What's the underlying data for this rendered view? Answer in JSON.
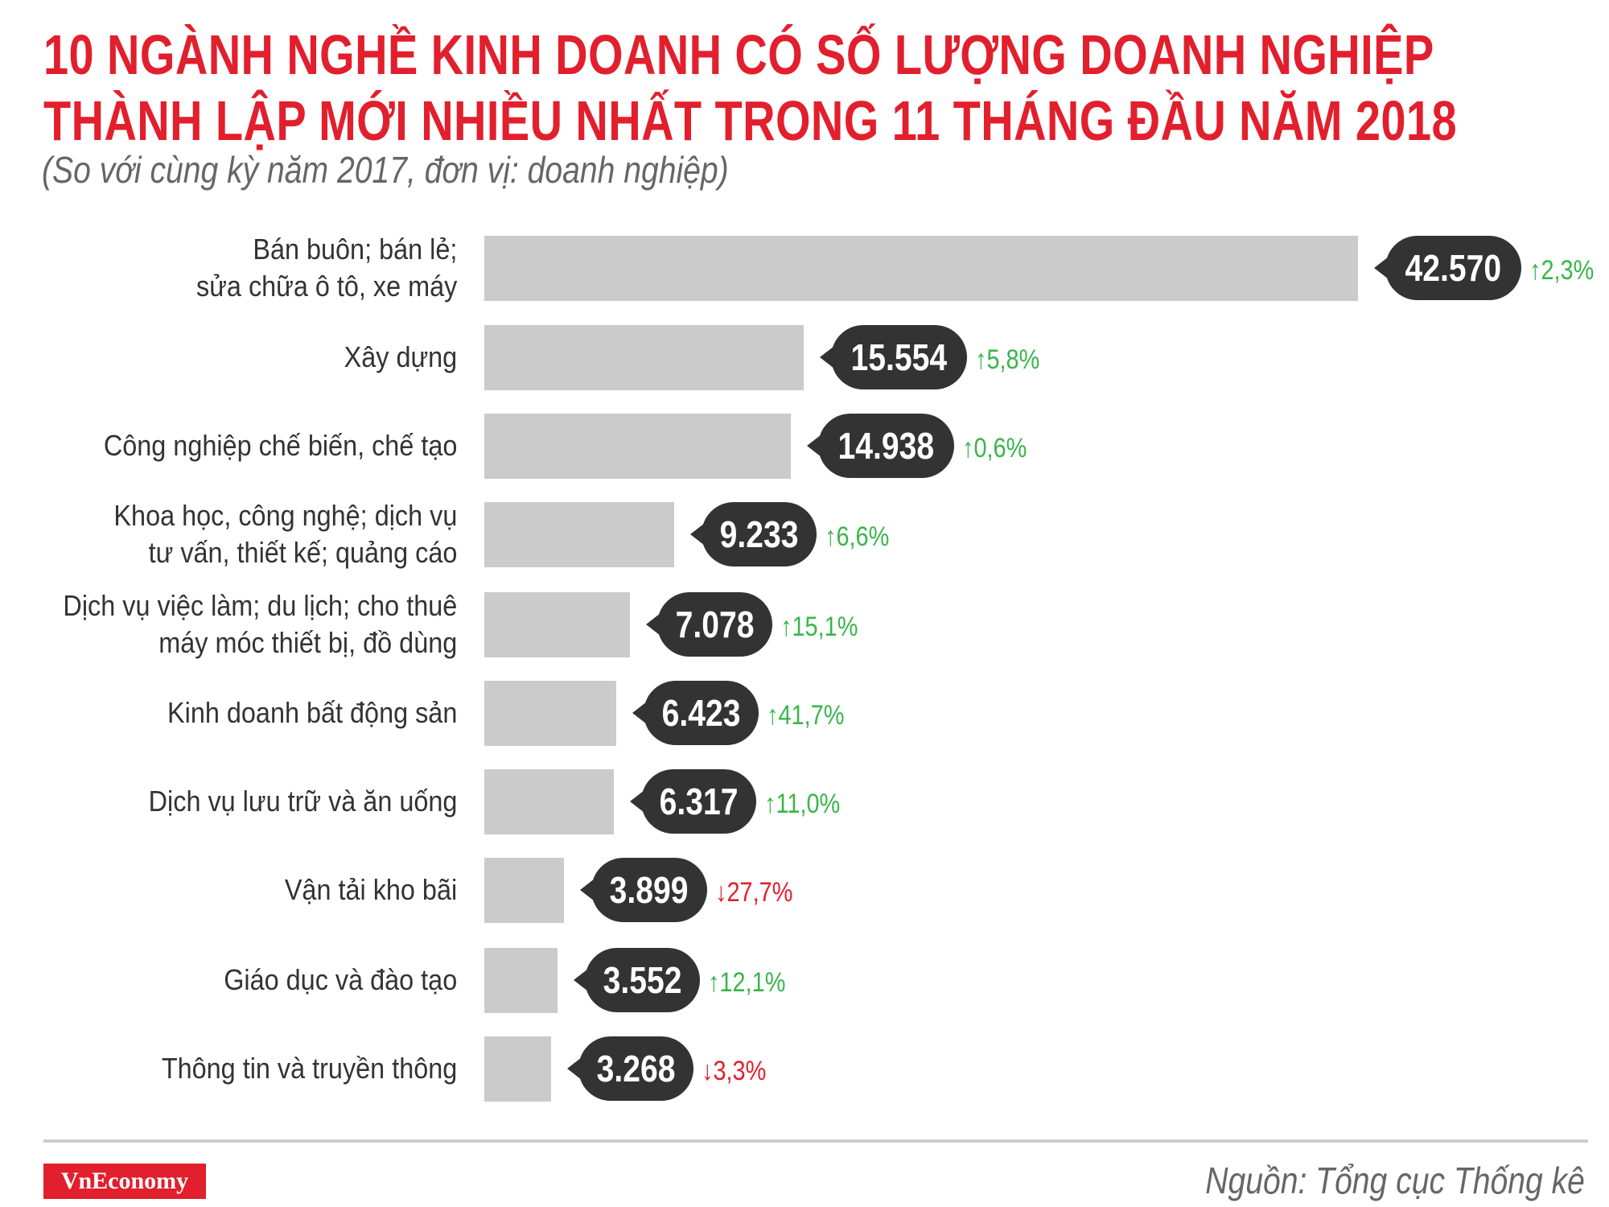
{
  "header": {
    "title_line1": "10 NGÀNH NGHỀ KINH DOANH CÓ SỐ LƯỢNG DOANH NGHIỆP",
    "title_line2": "THÀNH LẬP MỚI NHIỀU NHẤT TRONG 11 THÁNG ĐẦU NĂM 2018",
    "subtitle": "(So với cùng kỳ năm 2017, đơn vị: doanh nghiệp)"
  },
  "chart_data": {
    "type": "bar",
    "orientation": "horizontal",
    "title": "10 NGÀNH NGHỀ KINH DOANH CÓ SỐ LƯỢNG DOANH NGHIỆP THÀNH LẬP MỚI NHIỀU NHẤT TRONG 11 THÁNG ĐẦU NĂM 2018",
    "subtitle": "(So với cùng kỳ năm 2017, đơn vị: doanh nghiệp)",
    "grid": false,
    "categories": [
      [
        "Bán buôn; bán lẻ;",
        "sửa chữa ô tô, xe máy"
      ],
      [
        "Xây dựng"
      ],
      [
        "Công nghiệp chế biến, chế tạo"
      ],
      [
        "Khoa học, công nghệ; dịch vụ",
        "tư vấn, thiết kế; quảng cáo"
      ],
      [
        "Dịch vụ việc làm; du lịch; cho thuê",
        "máy móc thiết bị, đồ dùng"
      ],
      [
        "Kinh doanh bất động sản"
      ],
      [
        "Dịch vụ lưu trữ và ăn uống"
      ],
      [
        "Vận tải kho bãi"
      ],
      [
        "Giáo dục và đào tạo"
      ],
      [
        "Thông tin và truyền thông"
      ]
    ],
    "values": [
      42570,
      15554,
      14938,
      9233,
      7078,
      6423,
      6317,
      3899,
      3552,
      3268
    ],
    "value_labels": [
      "42.570",
      "15.554",
      "14.938",
      "9.233",
      "7.078",
      "6.423",
      "6.317",
      "3.899",
      "3.552",
      "3.268"
    ],
    "change_labels": [
      "2,3%",
      "5,8%",
      "0,6%",
      "6,6%",
      "15,1%",
      "41,7%",
      "11,0%",
      "27,7%",
      "12,1%",
      "3,3%"
    ],
    "change_direction": [
      "up",
      "up",
      "up",
      "up",
      "up",
      "up",
      "up",
      "down",
      "up",
      "down"
    ],
    "colors": {
      "bar": "#cbcbcb",
      "bubble": "#333333",
      "up": "#3ab54a",
      "down": "#e21f2d"
    }
  },
  "footer": {
    "logo": "VnEconomy",
    "source": "Nguồn: Tổng cục Thống kê"
  }
}
